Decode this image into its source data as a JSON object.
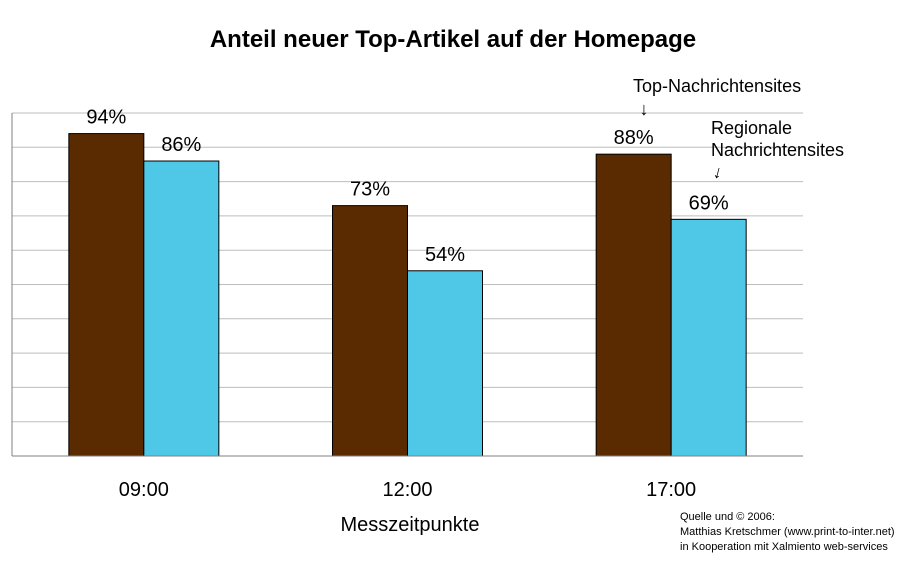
{
  "chart_data": {
    "type": "bar",
    "title": "Anteil neuer Top-Artikel auf der Homepage",
    "xlabel": "Messzeitpunkte",
    "ylabel": "",
    "categories": [
      "09:00",
      "12:00",
      "17:00"
    ],
    "series": [
      {
        "name": "Top-Nachrichtensites",
        "values": [
          94,
          73,
          88
        ],
        "labels": [
          "94%",
          "73%",
          "88%"
        ],
        "color": "#5a2a00"
      },
      {
        "name": "Regionale Nachrichtensites",
        "values": [
          86,
          54,
          69
        ],
        "labels": [
          "86%",
          "54%",
          "69%"
        ],
        "color": "#4fc8e8"
      }
    ],
    "ylim": [
      0,
      100
    ],
    "grid": true,
    "legend": "annotations near 17:00 bars"
  },
  "annotations": {
    "top": "Top-Nachrichtensites",
    "regional_line1": "Regionale",
    "regional_line2": "Nachrichtensites",
    "arrow": "↓"
  },
  "source": {
    "line1": "Quelle und © 2006:",
    "line2": "Matthias Kretschmer (www.print-to-inter.net)",
    "line3": "in Kooperation mit Xalmiento web-services"
  },
  "colors": {
    "grid": "#bdbdbd",
    "axis": "#808080"
  }
}
